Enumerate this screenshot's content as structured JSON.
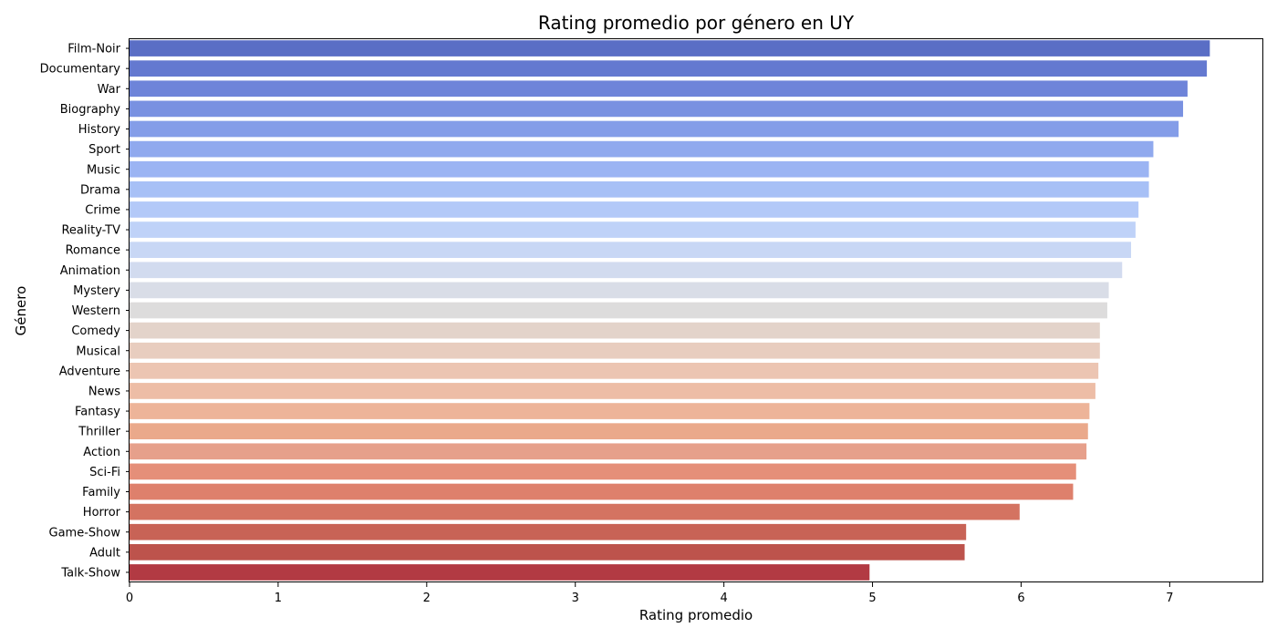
{
  "chart_data": {
    "type": "bar",
    "orientation": "horizontal",
    "title": "Rating promedio por género en UY",
    "xlabel": "Rating promedio",
    "ylabel": "Género",
    "xlim": [
      0,
      7.63
    ],
    "xticks": [
      0,
      1,
      2,
      3,
      4,
      5,
      6,
      7
    ],
    "grid": false,
    "categories": [
      "Film-Noir",
      "Documentary",
      "War",
      "Biography",
      "History",
      "Sport",
      "Music",
      "Drama",
      "Crime",
      "Reality-TV",
      "Romance",
      "Animation",
      "Mystery",
      "Western",
      "Comedy",
      "Musical",
      "Adventure",
      "News",
      "Fantasy",
      "Thriller",
      "Action",
      "Sci-Fi",
      "Family",
      "Horror",
      "Game-Show",
      "Adult",
      "Talk-Show"
    ],
    "values": [
      7.27,
      7.25,
      7.12,
      7.09,
      7.06,
      6.89,
      6.86,
      6.86,
      6.79,
      6.77,
      6.74,
      6.68,
      6.59,
      6.58,
      6.53,
      6.53,
      6.52,
      6.5,
      6.46,
      6.45,
      6.44,
      6.37,
      6.35,
      5.99,
      5.63,
      5.62,
      4.98
    ],
    "colors": [
      "#5a6ec5",
      "#6479d0",
      "#6e84d9",
      "#7991e1",
      "#849de8",
      "#90a9ee",
      "#9bb4f3",
      "#a7c0f6",
      "#b3c9f8",
      "#bfd2f8",
      "#c8d7f5",
      "#d2dbef",
      "#d9dde7",
      "#dddcdc",
      "#e3d3ca",
      "#e8cdbf",
      "#ecc5b2",
      "#edbda6",
      "#edb499",
      "#eaa98b",
      "#e6a08b",
      "#e58f79",
      "#de806c",
      "#d47361",
      "#c86356",
      "#bd534c",
      "#b23a43"
    ]
  }
}
